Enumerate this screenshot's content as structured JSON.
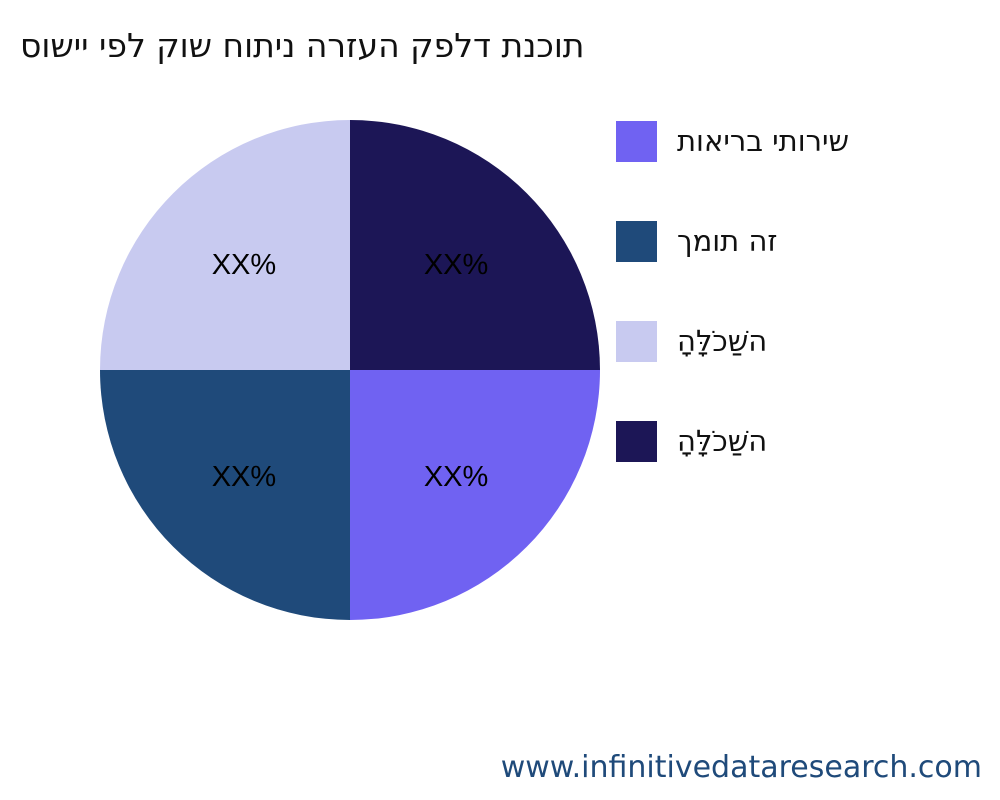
{
  "chart_data": {
    "type": "pie",
    "title": "סושיי יפל קוש חותינ הרזעה קפלד תנכות",
    "slices": [
      {
        "label": "תואירב יתוריש",
        "value": 25,
        "data_label": "XX%",
        "color": "#7062f2"
      },
      {
        "label": "ךמות הז",
        "value": 25,
        "data_label": "XX%",
        "color": "#1f4a7a"
      },
      {
        "label": "הָלָּכֹשַׁה",
        "value": 25,
        "data_label": "XX%",
        "color": "#c8caf0"
      },
      {
        "label": "הָלָּכֹשַׁה",
        "value": 25,
        "data_label": "XX%",
        "color": "#1c1656"
      }
    ],
    "start_angle": "3 o'clock",
    "direction": "clockwise",
    "legend_position": "right"
  },
  "watermark": "www.infinitivedataresearch.com"
}
